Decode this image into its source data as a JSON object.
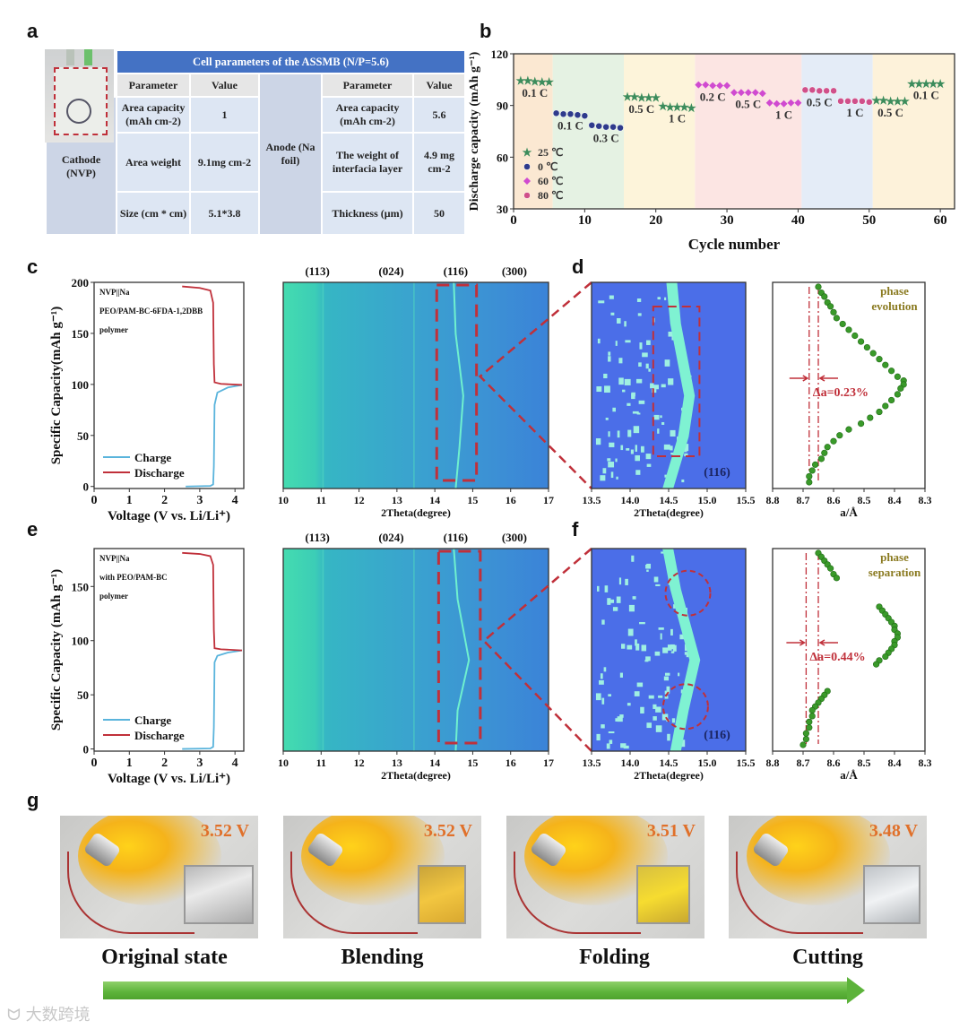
{
  "panel_labels": [
    "a",
    "b",
    "c",
    "d",
    "e",
    "f",
    "g"
  ],
  "table_a": {
    "title": "Cell parameters of the ASSMB   (N/P=5.6)",
    "cathode": "Cathode (NVP)",
    "anode": "Anode (Na foil)",
    "headers": [
      "Parameter",
      "Value",
      "Parameter",
      "Value"
    ],
    "cathode_rows": [
      {
        "param": "Area capacity (mAh cm-2)",
        "value": "1"
      },
      {
        "param": "Area weight",
        "value": "9.1mg cm-2"
      },
      {
        "param": "Size (cm * cm)",
        "value": "5.1*3.8"
      }
    ],
    "anode_rows": [
      {
        "param": "Area capacity (mAh cm-2)",
        "value": "5.6"
      },
      {
        "param": "The weight of interfacia layer",
        "value": "4.9 mg cm-2"
      },
      {
        "param": "Thickness (μm)",
        "value": "50"
      }
    ]
  },
  "chart_data": [
    {
      "type": "scatter",
      "panel": "b",
      "xlabel": "Cycle number",
      "ylabel": "Discharge capacity (mAh g⁻¹)",
      "xlim": [
        0,
        62
      ],
      "ylim": [
        30,
        120
      ],
      "xticks": [
        "0",
        "10",
        "20",
        "30",
        "40",
        "50",
        "60"
      ],
      "yticks": [
        "30",
        "60",
        "90",
        "120"
      ],
      "legend": [
        {
          "label": "25 ℃",
          "color": "#3c8c5c",
          "marker": "star"
        },
        {
          "label": "0 ℃",
          "color": "#2e3a8c",
          "marker": "circle"
        },
        {
          "label": "60 ℃",
          "color": "#d04ad0",
          "marker": "diamond"
        },
        {
          "label": "80 ℃",
          "color": "#d0508a",
          "marker": "circle"
        }
      ],
      "legend_position": "bottom-left",
      "bands": [
        {
          "from": 0,
          "to": 5.5,
          "color": "#fbe8d2"
        },
        {
          "from": 5.5,
          "to": 15.5,
          "color": "#e5f2e3"
        },
        {
          "from": 15.5,
          "to": 25.5,
          "color": "#fdf4da"
        },
        {
          "from": 25.5,
          "to": 40.5,
          "color": "#fce5e3"
        },
        {
          "from": 40.5,
          "to": 50.5,
          "color": "#e4ecf7"
        },
        {
          "from": 50.5,
          "to": 62,
          "color": "#fdf2da"
        }
      ],
      "segments": [
        {
          "rate": "0.1 C",
          "series": 0,
          "cycles": [
            1,
            2,
            3,
            4,
            5
          ],
          "values": [
            104.5,
            104.5,
            104,
            103.5,
            103.5
          ]
        },
        {
          "rate": "0.1 C",
          "series": 1,
          "cycles": [
            6,
            7,
            8,
            9,
            10
          ],
          "values": [
            85.5,
            85,
            85,
            84.5,
            84
          ]
        },
        {
          "rate": "0.3 C",
          "series": 1,
          "cycles": [
            11,
            12,
            13,
            14,
            15
          ],
          "values": [
            78.5,
            78,
            77.5,
            77.5,
            77
          ]
        },
        {
          "rate": "0.5 C",
          "series": 0,
          "cycles": [
            16,
            17,
            18,
            19,
            20
          ],
          "values": [
            95,
            95,
            94.5,
            94.5,
            94.5
          ]
        },
        {
          "rate": "1 C",
          "series": 0,
          "cycles": [
            21,
            22,
            23,
            24,
            25
          ],
          "values": [
            89.5,
            89,
            89,
            89,
            88.5
          ]
        },
        {
          "rate": "0.2 C",
          "series": 2,
          "cycles": [
            26,
            27,
            28,
            29,
            30
          ],
          "values": [
            102,
            102,
            101.5,
            101.5,
            101.5
          ]
        },
        {
          "rate": "0.5 C",
          "series": 2,
          "cycles": [
            31,
            32,
            33,
            34,
            35
          ],
          "values": [
            97.5,
            97.5,
            97.5,
            97.5,
            97
          ]
        },
        {
          "rate": "1 C",
          "series": 2,
          "cycles": [
            36,
            37,
            38,
            39,
            40
          ],
          "values": [
            91.5,
            91,
            91,
            91.5,
            91.5
          ]
        },
        {
          "rate": "0.5 C",
          "series": 3,
          "cycles": [
            41,
            42,
            43,
            44,
            45
          ],
          "values": [
            99,
            99,
            98.5,
            98.5,
            98.5
          ]
        },
        {
          "rate": "1 C",
          "series": 3,
          "cycles": [
            46,
            47,
            48,
            49,
            50
          ],
          "values": [
            92.5,
            92.5,
            92.5,
            92.5,
            92
          ]
        },
        {
          "rate": "0.5 C",
          "series": 0,
          "cycles": [
            51,
            52,
            53,
            54,
            55
          ],
          "values": [
            93,
            93,
            92.5,
            92.5,
            92.5
          ]
        },
        {
          "rate": "0.1 C",
          "series": 0,
          "cycles": [
            56,
            57,
            58,
            59,
            60
          ],
          "values": [
            102.5,
            102.5,
            102.5,
            102.5,
            102.5
          ]
        }
      ]
    },
    {
      "type": "line",
      "panel": "c",
      "xlabel": "Voltage (V vs. Li/Li⁺)",
      "ylabel": "Specific Capacity(mAh g⁻¹)",
      "xlim": [
        0,
        4.25
      ],
      "ylim": [
        -2,
        200
      ],
      "xticks": [
        "0",
        "1",
        "2",
        "3",
        "4"
      ],
      "yticks": [
        "0",
        "50",
        "100",
        "150",
        "200"
      ],
      "annotation": [
        "NVP||Na",
        "PEO/PAM-BC-6FDA-1,2DBB",
        "polymer"
      ],
      "series": [
        {
          "name": "Charge",
          "color": "#5ab4dc",
          "points": [
            [
              2.6,
              0
            ],
            [
              3.3,
              0.5
            ],
            [
              3.38,
              2
            ],
            [
              3.4,
              20
            ],
            [
              3.42,
              80
            ],
            [
              3.5,
              92
            ],
            [
              3.8,
              97
            ],
            [
              4.2,
              99.5
            ]
          ]
        },
        {
          "name": "Discharge",
          "color": "#c0303a",
          "points": [
            [
              4.2,
              99.5
            ],
            [
              3.6,
              100.5
            ],
            [
              3.42,
              102
            ],
            [
              3.4,
              120
            ],
            [
              3.38,
              180
            ],
            [
              3.3,
              192
            ],
            [
              3.0,
              194.5
            ],
            [
              2.5,
              196
            ]
          ]
        }
      ]
    },
    {
      "type": "heatmap",
      "panel": "c",
      "xlabel": "2Theta(degree)",
      "xlim": [
        10,
        17
      ],
      "xticks": [
        "10",
        "11",
        "12",
        "13",
        "14",
        "15",
        "16",
        "17"
      ],
      "peaks": [
        {
          "label": "(113)",
          "x": 10.9
        },
        {
          "label": "(024)",
          "x": 12.85
        },
        {
          "label": "(116)",
          "x": 14.55
        },
        {
          "label": "(300)",
          "x": 16.1
        }
      ],
      "highlight_range": [
        14.05,
        15.1
      ],
      "peak_trace": [
        [
          14.5,
          1
        ],
        [
          14.55,
          0.75
        ],
        [
          14.75,
          0.45
        ],
        [
          14.65,
          0.2
        ],
        [
          14.55,
          0
        ]
      ]
    },
    {
      "type": "heatmap",
      "panel": "d",
      "xlabel": "2Theta(degree)",
      "xlim": [
        13.5,
        15.5
      ],
      "xticks": [
        "13.5",
        "14.0",
        "14.5",
        "15.0",
        "15.5"
      ],
      "label": "(116)",
      "peak_trace": [
        [
          14.55,
          1
        ],
        [
          14.6,
          0.8
        ],
        [
          14.78,
          0.45
        ],
        [
          14.7,
          0.25
        ],
        [
          14.5,
          0
        ]
      ]
    },
    {
      "type": "scatter",
      "panel": "d",
      "xlabel": "a/Å",
      "xlim": [
        8.8,
        8.3
      ],
      "xticks": [
        "8.8",
        "8.7",
        "8.6",
        "8.5",
        "8.4",
        "8.3"
      ],
      "title": [
        "phase",
        "evolution"
      ],
      "delta_label": "Δa=0.23%",
      "reference_lines": [
        8.68,
        8.65
      ],
      "time_fraction_and_a": [
        [
          0,
          8.65
        ],
        [
          0.03,
          8.64
        ],
        [
          0.05,
          8.63
        ],
        [
          0.08,
          8.62
        ],
        [
          0.1,
          8.61
        ],
        [
          0.13,
          8.6
        ],
        [
          0.16,
          8.59
        ],
        [
          0.19,
          8.57
        ],
        [
          0.22,
          8.55
        ],
        [
          0.25,
          8.53
        ],
        [
          0.28,
          8.51
        ],
        [
          0.31,
          8.49
        ],
        [
          0.34,
          8.47
        ],
        [
          0.37,
          8.45
        ],
        [
          0.4,
          8.43
        ],
        [
          0.43,
          8.41
        ],
        [
          0.46,
          8.39
        ],
        [
          0.48,
          8.37
        ],
        [
          0.5,
          8.37
        ],
        [
          0.52,
          8.38
        ],
        [
          0.55,
          8.39
        ],
        [
          0.58,
          8.41
        ],
        [
          0.61,
          8.43
        ],
        [
          0.64,
          8.45
        ],
        [
          0.67,
          8.48
        ],
        [
          0.7,
          8.51
        ],
        [
          0.73,
          8.55
        ],
        [
          0.76,
          8.58
        ],
        [
          0.79,
          8.6
        ],
        [
          0.82,
          8.62
        ],
        [
          0.85,
          8.63
        ],
        [
          0.88,
          8.64
        ],
        [
          0.91,
          8.66
        ],
        [
          0.94,
          8.67
        ],
        [
          0.97,
          8.68
        ],
        [
          1,
          8.68
        ]
      ]
    },
    {
      "type": "line",
      "panel": "e",
      "xlabel": "Voltage (V vs. Li/Li⁺)",
      "ylabel": "Specific Capacity (mAh g⁻¹)",
      "xlim": [
        0,
        4.25
      ],
      "ylim": [
        -2,
        185
      ],
      "xticks": [
        "0",
        "1",
        "2",
        "3",
        "4"
      ],
      "yticks": [
        "0",
        "50",
        "100",
        "150"
      ],
      "annotation": [
        "NVP||Na",
        "with PEO/PAM-BC",
        "polymer"
      ],
      "series": [
        {
          "name": "Charge",
          "color": "#5ab4dc",
          "points": [
            [
              2.5,
              0
            ],
            [
              3.3,
              0.5
            ],
            [
              3.38,
              2
            ],
            [
              3.4,
              20
            ],
            [
              3.42,
              80
            ],
            [
              3.5,
              86
            ],
            [
              3.8,
              89
            ],
            [
              4.2,
              91
            ]
          ]
        },
        {
          "name": "Discharge",
          "color": "#c0303a",
          "points": [
            [
              4.2,
              91
            ],
            [
              3.6,
              92
            ],
            [
              3.42,
              93
            ],
            [
              3.4,
              110
            ],
            [
              3.38,
              170
            ],
            [
              3.3,
              178
            ],
            [
              3.0,
              180
            ],
            [
              2.5,
              181
            ]
          ]
        }
      ]
    },
    {
      "type": "heatmap",
      "panel": "e",
      "xlabel": "2Theta(degree)",
      "xlim": [
        10,
        17
      ],
      "xticks": [
        "10",
        "11",
        "12",
        "13",
        "14",
        "15",
        "16",
        "17"
      ],
      "peaks": [
        {
          "label": "(113)",
          "x": 10.9
        },
        {
          "label": "(024)",
          "x": 12.85
        },
        {
          "label": "(116)",
          "x": 14.55
        },
        {
          "label": "(300)",
          "x": 16.1
        }
      ],
      "highlight_range": [
        14.1,
        15.2
      ],
      "peak_trace": [
        [
          14.5,
          1
        ],
        [
          14.6,
          0.75
        ],
        [
          14.9,
          0.45
        ],
        [
          14.6,
          0.2
        ],
        [
          14.55,
          0
        ]
      ]
    },
    {
      "type": "heatmap",
      "panel": "f",
      "xlabel": "2Theta(degree)",
      "xlim": [
        13.5,
        15.5
      ],
      "xticks": [
        "13.5",
        "14.0",
        "14.5",
        "15.0",
        "15.5"
      ],
      "label": "(116)",
      "peak_trace": [
        [
          14.5,
          1
        ],
        [
          14.6,
          0.8
        ],
        [
          14.85,
          0.45
        ],
        [
          14.7,
          0.2
        ],
        [
          14.6,
          0
        ]
      ]
    },
    {
      "type": "scatter",
      "panel": "f",
      "xlabel": "a/Å",
      "xlim": [
        8.8,
        8.3
      ],
      "xticks": [
        "8.8",
        "8.7",
        "8.6",
        "8.5",
        "8.4",
        "8.3"
      ],
      "title": [
        "phase",
        "separation"
      ],
      "delta_label": "Δa=0.44%",
      "reference_lines": [
        8.69,
        8.65
      ],
      "time_fraction_and_a": [
        [
          0,
          8.65
        ],
        [
          0.02,
          8.64
        ],
        [
          0.04,
          8.63
        ],
        [
          0.06,
          8.62
        ],
        [
          0.08,
          8.61
        ],
        [
          0.11,
          8.6
        ],
        [
          0.13,
          8.59
        ],
        [
          0.28,
          8.45
        ],
        [
          0.3,
          8.44
        ],
        [
          0.32,
          8.43
        ],
        [
          0.34,
          8.42
        ],
        [
          0.36,
          8.41
        ],
        [
          0.38,
          8.4
        ],
        [
          0.4,
          8.4
        ],
        [
          0.42,
          8.39
        ],
        [
          0.44,
          8.39
        ],
        [
          0.46,
          8.4
        ],
        [
          0.48,
          8.4
        ],
        [
          0.5,
          8.41
        ],
        [
          0.52,
          8.42
        ],
        [
          0.54,
          8.43
        ],
        [
          0.56,
          8.45
        ],
        [
          0.58,
          8.46
        ],
        [
          0.72,
          8.62
        ],
        [
          0.74,
          8.63
        ],
        [
          0.76,
          8.64
        ],
        [
          0.78,
          8.65
        ],
        [
          0.8,
          8.66
        ],
        [
          0.82,
          8.67
        ],
        [
          0.85,
          8.67
        ],
        [
          0.88,
          8.68
        ],
        [
          0.91,
          8.68
        ],
        [
          0.94,
          8.69
        ],
        [
          0.97,
          8.69
        ],
        [
          1,
          8.7
        ]
      ]
    }
  ],
  "panel_g": {
    "photos": [
      {
        "voltage": "3.52 V",
        "caption": "Original state"
      },
      {
        "voltage": "3.52 V",
        "caption": "Blending"
      },
      {
        "voltage": "3.51 V",
        "caption": "Folding"
      },
      {
        "voltage": "3.48 V",
        "caption": "Cutting"
      }
    ]
  },
  "watermark": "大数跨境"
}
